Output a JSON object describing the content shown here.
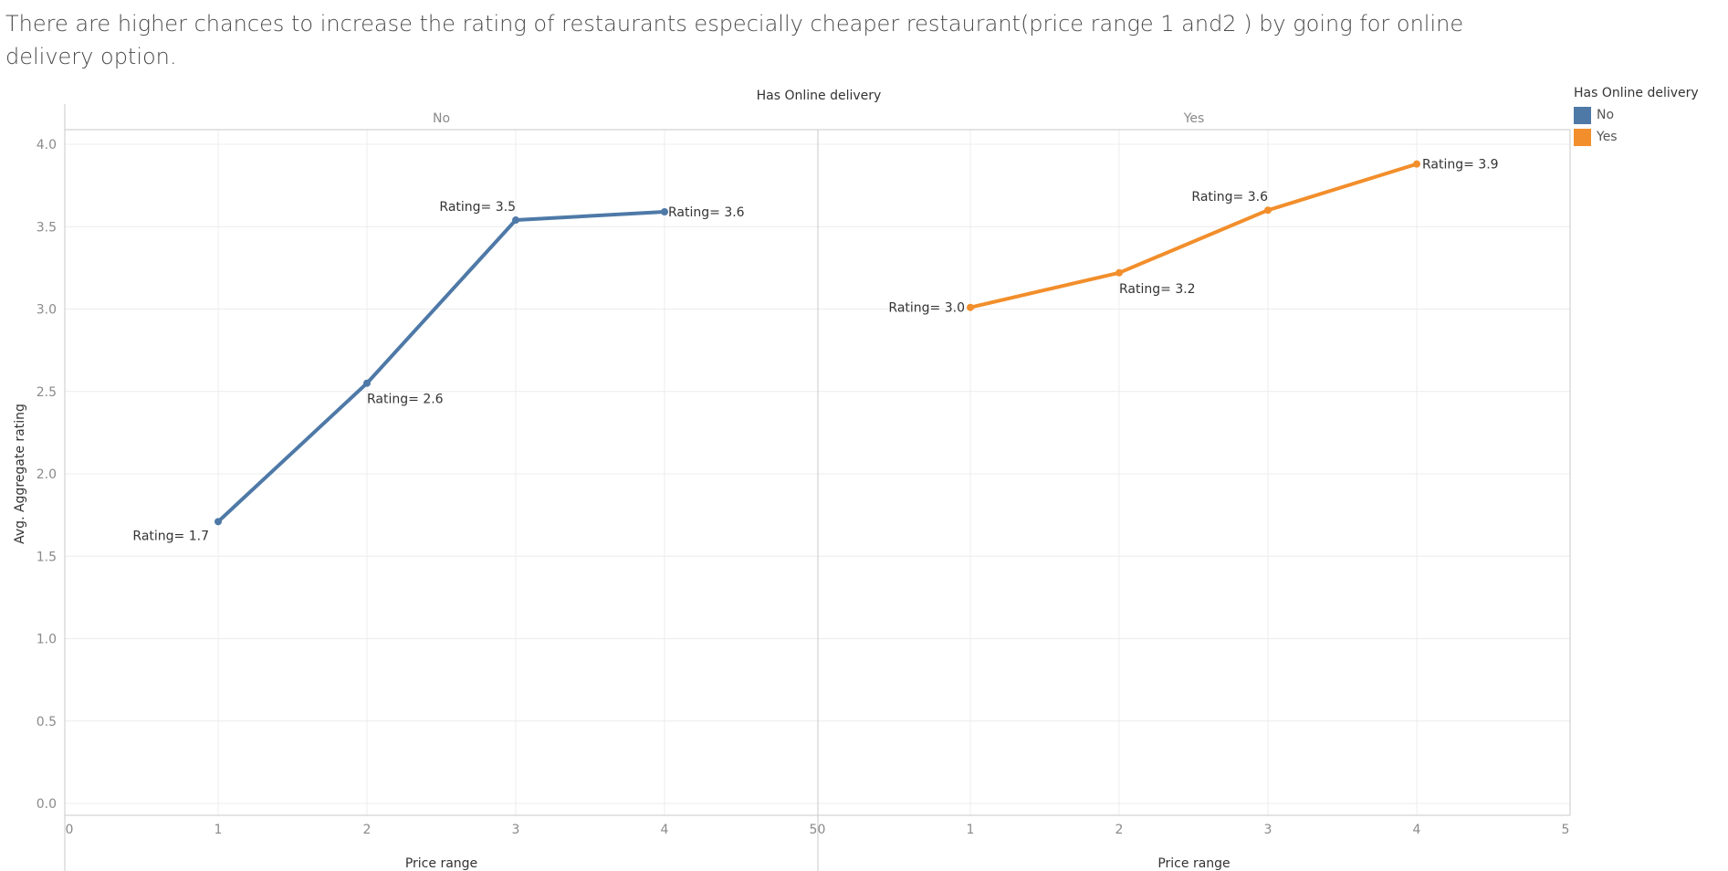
{
  "chart_data": {
    "type": "line",
    "title": "There are higher chances to increase the rating of restaurants especially cheaper restaurant(price range 1 and2 ) by going for online delivery option.",
    "column_header": "Has Online delivery",
    "xlabel": "Price range",
    "ylabel": "Avg. Aggregate rating",
    "ylim": [
      0,
      4
    ],
    "yticks": [
      0.0,
      0.5,
      1.0,
      1.5,
      2.0,
      2.5,
      3.0,
      3.5,
      4.0
    ],
    "xlim": [
      0,
      5
    ],
    "xticks": [
      0,
      1,
      2,
      3,
      4,
      5
    ],
    "grid": true,
    "legend": {
      "title": "Has Online delivery",
      "position": "right",
      "items": [
        {
          "label": "No",
          "color": "#4e79a7"
        },
        {
          "label": "Yes",
          "color": "#f28e2b"
        }
      ]
    },
    "panels": [
      {
        "name": "No",
        "color": "#4e79a7",
        "x": [
          1,
          2,
          3,
          4
        ],
        "y": [
          1.71,
          2.55,
          3.54,
          3.59
        ],
        "labels": [
          "Rating= 1.7",
          "Rating= 2.6",
          "Rating= 3.5",
          "Rating= 3.6"
        ]
      },
      {
        "name": "Yes",
        "color": "#f28e2b",
        "x": [
          1,
          2,
          3,
          4
        ],
        "y": [
          3.01,
          3.22,
          3.6,
          3.88
        ],
        "labels": [
          "Rating= 3.0",
          "Rating= 3.2",
          "Rating= 3.6",
          "Rating= 3.9"
        ]
      }
    ]
  }
}
